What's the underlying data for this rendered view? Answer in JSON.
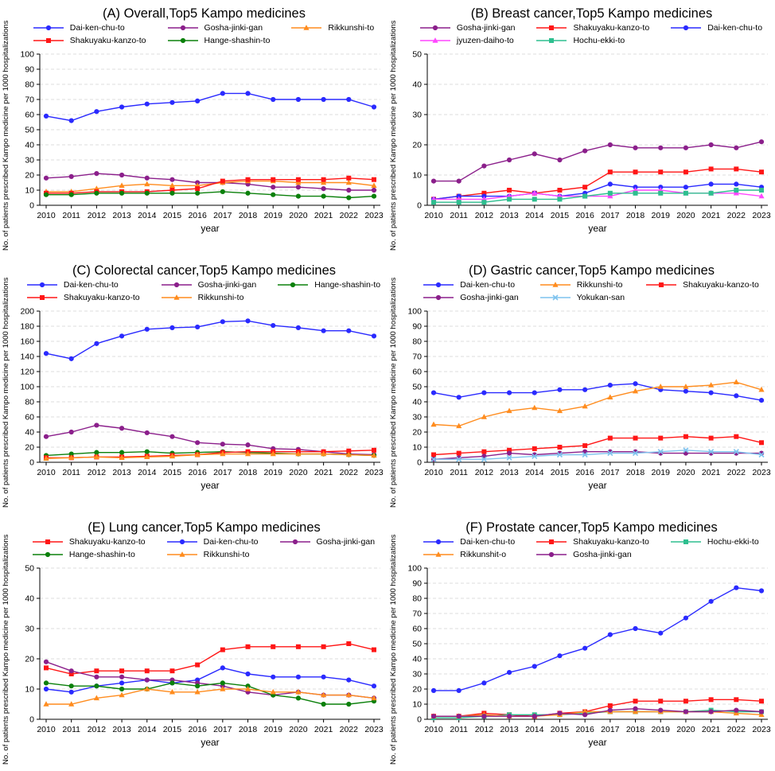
{
  "figure": {
    "xlabel": "year",
    "ylabel": "No. of patients prescribed Kampo medicine per 1000 hospitalizations"
  },
  "chart_data": [
    {
      "id": "A",
      "type": "line",
      "title": "(A) Overall,Top5 Kampo medicines",
      "xlabel": "year",
      "ylabel": "No. of patients prescribed Kampo medicine per 1000 hospitalizations",
      "x": [
        2010,
        2011,
        2012,
        2013,
        2014,
        2015,
        2016,
        2017,
        2018,
        2019,
        2020,
        2021,
        2022,
        2023
      ],
      "ylim": [
        0,
        100
      ],
      "ystep": 10,
      "grid": "dashed-horizontal",
      "legend_position": "top",
      "series": [
        {
          "name": "Dai-ken-chu-to",
          "color": "#2a2aff",
          "marker": "circle",
          "values": [
            59,
            56,
            62,
            65,
            67,
            68,
            69,
            74,
            74,
            70,
            70,
            70,
            70,
            65
          ]
        },
        {
          "name": "Gosha-jinki-gan",
          "color": "#8b1f8b",
          "marker": "circle",
          "values": [
            18,
            19,
            21,
            20,
            18,
            17,
            15,
            15,
            14,
            12,
            12,
            11,
            10,
            10
          ]
        },
        {
          "name": "Rikkunshi-to",
          "color": "#ff8c1e",
          "marker": "triangle",
          "values": [
            9,
            9,
            11,
            13,
            14,
            13,
            13,
            15,
            16,
            16,
            15,
            15,
            15,
            13
          ]
        },
        {
          "name": "Shakuyaku-kanzo-to",
          "color": "#ff1616",
          "marker": "square",
          "values": [
            8,
            8,
            9,
            9,
            9,
            10,
            11,
            16,
            17,
            17,
            17,
            17,
            18,
            17
          ]
        },
        {
          "name": "Hange-shashin-to",
          "color": "#0b800b",
          "marker": "circle",
          "values": [
            7,
            7,
            8,
            8,
            8,
            8,
            8,
            9,
            8,
            7,
            6,
            6,
            5,
            6
          ]
        }
      ]
    },
    {
      "id": "B",
      "type": "line",
      "title": "(B) Breast cancer,Top5 Kampo medicines",
      "xlabel": "year",
      "ylabel": "No. of patients prescribed Kampo medicine per 1000 hospitalizations",
      "x": [
        2010,
        2011,
        2012,
        2013,
        2014,
        2015,
        2016,
        2017,
        2018,
        2019,
        2020,
        2021,
        2022,
        2023
      ],
      "ylim": [
        0,
        50
      ],
      "ystep": 10,
      "grid": "dashed-horizontal",
      "legend_position": "top",
      "series": [
        {
          "name": "Gosha-jinki-gan",
          "color": "#8b1f8b",
          "marker": "circle",
          "values": [
            8,
            8,
            13,
            15,
            17,
            15,
            18,
            20,
            19,
            19,
            19,
            20,
            19,
            21
          ]
        },
        {
          "name": "Shakuyaku-kanzo-to",
          "color": "#ff1616",
          "marker": "square",
          "values": [
            2,
            3,
            4,
            5,
            4,
            5,
            6,
            11,
            11,
            11,
            11,
            12,
            12,
            11
          ]
        },
        {
          "name": "Dai-ken-chu-to",
          "color": "#2a2aff",
          "marker": "circle",
          "values": [
            2,
            3,
            3,
            3,
            4,
            3,
            4,
            7,
            6,
            6,
            6,
            7,
            7,
            6
          ]
        },
        {
          "name": "jyuzen-daiho-to",
          "color": "#ff47ff",
          "marker": "triangle",
          "values": [
            2,
            2,
            2,
            3,
            4,
            3,
            3,
            3,
            5,
            5,
            4,
            4,
            4,
            3
          ]
        },
        {
          "name": "Hochu-ekki-to",
          "color": "#2ebf8f",
          "marker": "square",
          "values": [
            1,
            1,
            1,
            2,
            2,
            2,
            3,
            4,
            4,
            4,
            4,
            4,
            5,
            5
          ]
        }
      ]
    },
    {
      "id": "C",
      "type": "line",
      "title": "(C) Colorectal cancer,Top5 Kampo medicines",
      "xlabel": "year",
      "ylabel": "No. of patients prescribed Kampo medicine per 1000 hospitalizations",
      "x": [
        2010,
        2011,
        2012,
        2013,
        2014,
        2015,
        2016,
        2017,
        2018,
        2019,
        2020,
        2021,
        2022,
        2023
      ],
      "ylim": [
        0,
        200
      ],
      "ystep": 20,
      "grid": "dashed-horizontal",
      "legend_position": "top",
      "series": [
        {
          "name": "Dai-ken-chu-to",
          "color": "#2a2aff",
          "marker": "circle",
          "values": [
            144,
            137,
            157,
            167,
            176,
            178,
            179,
            186,
            187,
            181,
            178,
            174,
            174,
            167
          ]
        },
        {
          "name": "Gosha-jinki-gan",
          "color": "#8b1f8b",
          "marker": "circle",
          "values": [
            34,
            40,
            49,
            45,
            39,
            34,
            26,
            24,
            23,
            18,
            17,
            14,
            11,
            10
          ]
        },
        {
          "name": "Hange-shashin-to",
          "color": "#0b800b",
          "marker": "circle",
          "values": [
            9,
            11,
            13,
            13,
            14,
            12,
            13,
            14,
            13,
            12,
            11,
            11,
            10,
            9
          ]
        },
        {
          "name": "Shakuyaku-kanzo-to",
          "color": "#ff1616",
          "marker": "square",
          "values": [
            6,
            6,
            7,
            7,
            8,
            9,
            10,
            13,
            14,
            14,
            14,
            14,
            15,
            16
          ]
        },
        {
          "name": "Rikkunshi-to",
          "color": "#ff8c1e",
          "marker": "triangle",
          "values": [
            5,
            6,
            7,
            6,
            7,
            8,
            10,
            11,
            11,
            11,
            11,
            11,
            10,
            9
          ]
        }
      ]
    },
    {
      "id": "D",
      "type": "line",
      "title": "(D) Gastric cancer,Top5 Kampo medicines",
      "xlabel": "year",
      "ylabel": "No. of patients prescribed Kampo medicine per 1000 hospitalizations",
      "x": [
        2010,
        2011,
        2012,
        2013,
        2014,
        2015,
        2016,
        2017,
        2018,
        2019,
        2020,
        2021,
        2022,
        2023
      ],
      "ylim": [
        0,
        100
      ],
      "ystep": 10,
      "grid": "dashed-horizontal",
      "legend_position": "top",
      "series": [
        {
          "name": "Dai-ken-chu-to",
          "color": "#2a2aff",
          "marker": "circle",
          "values": [
            46,
            43,
            46,
            46,
            46,
            48,
            48,
            51,
            52,
            48,
            47,
            46,
            44,
            41
          ]
        },
        {
          "name": "Rikkunshi-to",
          "color": "#ff8c1e",
          "marker": "triangle",
          "values": [
            25,
            24,
            30,
            34,
            36,
            34,
            37,
            43,
            47,
            50,
            50,
            51,
            53,
            48
          ]
        },
        {
          "name": "Shakuyaku-kanzo-to",
          "color": "#ff1616",
          "marker": "square",
          "values": [
            5,
            6,
            7,
            8,
            9,
            10,
            11,
            16,
            16,
            16,
            17,
            16,
            17,
            13
          ]
        },
        {
          "name": "Gosha-jinki-gan",
          "color": "#8b1f8b",
          "marker": "circle",
          "values": [
            2,
            3,
            4,
            6,
            5,
            6,
            7,
            7,
            7,
            6,
            6,
            6,
            6,
            6
          ]
        },
        {
          "name": "Yokukan-san",
          "color": "#7fc3ee",
          "marker": "x",
          "values": [
            2,
            2,
            2,
            3,
            4,
            5,
            5,
            6,
            6,
            7,
            8,
            7,
            7,
            5
          ]
        }
      ]
    },
    {
      "id": "E",
      "type": "line",
      "title": "(E) Lung cancer,Top5 Kampo medicines",
      "xlabel": "year",
      "ylabel": "No. of patients prescribed Kampo medicine per 1000 hospitalizations",
      "x": [
        2010,
        2011,
        2012,
        2013,
        2014,
        2015,
        2016,
        2017,
        2018,
        2019,
        2020,
        2021,
        2022,
        2023
      ],
      "ylim": [
        0,
        50
      ],
      "ystep": 10,
      "grid": "dashed-horizontal",
      "legend_position": "top",
      "series": [
        {
          "name": "Shakuyaku-kanzo-to",
          "color": "#ff1616",
          "marker": "square",
          "values": [
            17,
            15,
            16,
            16,
            16,
            16,
            18,
            23,
            24,
            24,
            24,
            24,
            25,
            23
          ]
        },
        {
          "name": "Dai-ken-chu-to",
          "color": "#2a2aff",
          "marker": "circle",
          "values": [
            10,
            9,
            11,
            12,
            13,
            12,
            13,
            17,
            15,
            14,
            14,
            14,
            13,
            11
          ]
        },
        {
          "name": "Gosha-jinki-gan",
          "color": "#8b1f8b",
          "marker": "circle",
          "values": [
            19,
            16,
            14,
            14,
            13,
            13,
            12,
            11,
            9,
            8,
            9,
            8,
            8,
            7
          ]
        },
        {
          "name": "Hange-shashin-to",
          "color": "#0b800b",
          "marker": "circle",
          "values": [
            12,
            11,
            11,
            10,
            10,
            12,
            11,
            12,
            11,
            8,
            7,
            5,
            5,
            6
          ]
        },
        {
          "name": "Rikkunshi-to",
          "color": "#ff8c1e",
          "marker": "triangle",
          "values": [
            5,
            5,
            7,
            8,
            10,
            9,
            9,
            10,
            10,
            9,
            9,
            8,
            8,
            7
          ]
        }
      ]
    },
    {
      "id": "F",
      "type": "line",
      "title": "(F) Prostate cancer,Top5 Kampo medicines",
      "xlabel": "year",
      "ylabel": "No. of patients prescribed Kampo medicine per 1000 hospitalizations",
      "x": [
        2010,
        2011,
        2012,
        2013,
        2014,
        2015,
        2016,
        2017,
        2018,
        2019,
        2020,
        2021,
        2022,
        2023
      ],
      "ylim": [
        0,
        100
      ],
      "ystep": 10,
      "grid": "dashed-horizontal",
      "legend_position": "top",
      "series": [
        {
          "name": "Dai-ken-chu-to",
          "color": "#2a2aff",
          "marker": "circle",
          "values": [
            19,
            19,
            24,
            31,
            35,
            42,
            47,
            56,
            60,
            57,
            67,
            78,
            87,
            85
          ]
        },
        {
          "name": "Shakuyaku-kanzo-to",
          "color": "#ff1616",
          "marker": "square",
          "values": [
            2,
            2,
            4,
            3,
            2,
            4,
            5,
            9,
            12,
            12,
            12,
            13,
            13,
            12
          ]
        },
        {
          "name": "Hochu-ekki-to",
          "color": "#2ebf8f",
          "marker": "square",
          "values": [
            1,
            1,
            2,
            3,
            3,
            3,
            4,
            5,
            5,
            5,
            5,
            6,
            5,
            5
          ]
        },
        {
          "name": "Rikkunshit-o",
          "color": "#ff8c1e",
          "marker": "triangle",
          "values": [
            2,
            2,
            3,
            2,
            2,
            3,
            5,
            5,
            5,
            5,
            5,
            5,
            4,
            3
          ]
        },
        {
          "name": "Gosha-jinki-gan",
          "color": "#8b1f8b",
          "marker": "circle",
          "values": [
            2,
            2,
            2,
            2,
            2,
            4,
            3,
            6,
            7,
            6,
            5,
            5,
            6,
            5
          ]
        }
      ]
    }
  ]
}
